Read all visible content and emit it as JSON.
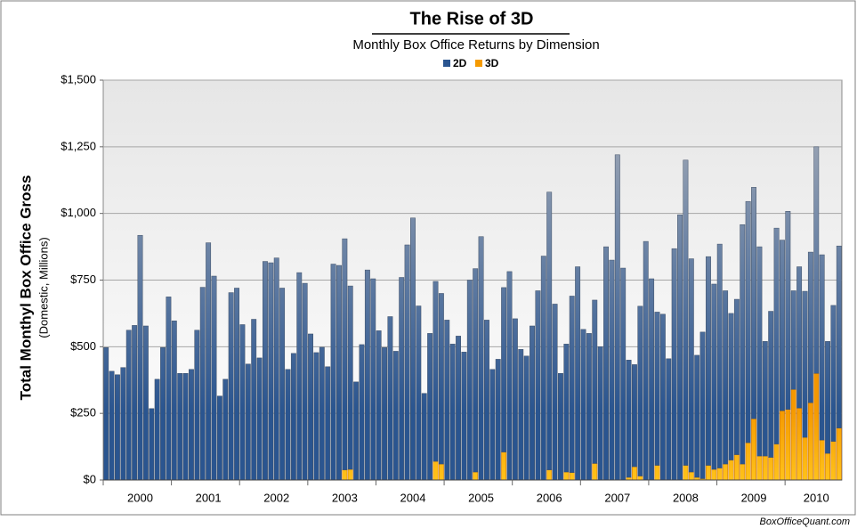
{
  "chart_data": {
    "type": "stacked_bar",
    "title": "The Rise of 3D",
    "subtitle": "Monthly Box Office Returns by Dimension",
    "y_label": "Total Monthyl Box Office Gross",
    "y_sublabel": "(Domestic, Millions)",
    "source": "BoxOfficeQuant.com",
    "categories": [
      null,
      null,
      null,
      null,
      null,
      null,
      "2000",
      null,
      null,
      null,
      null,
      null,
      null,
      null,
      null,
      null,
      null,
      null,
      "2001",
      null,
      null,
      null,
      null,
      null,
      null,
      null,
      null,
      null,
      null,
      null,
      "2002",
      null,
      null,
      null,
      null,
      null,
      null,
      null,
      null,
      null,
      null,
      null,
      "2003",
      null,
      null,
      null,
      null,
      null,
      null,
      null,
      null,
      null,
      null,
      null,
      "2004",
      null,
      null,
      null,
      null,
      null,
      null,
      null,
      null,
      null,
      null,
      null,
      "2005",
      null,
      null,
      null,
      null,
      null,
      null,
      null,
      null,
      null,
      null,
      null,
      "2006",
      null,
      null,
      null,
      null,
      null,
      null,
      null,
      null,
      null,
      null,
      null,
      "2007",
      null,
      null,
      null,
      null,
      null,
      null,
      null,
      null,
      null,
      null,
      null,
      "2008",
      null,
      null,
      null,
      null,
      null,
      null,
      null,
      null,
      null,
      null,
      null,
      "2009",
      null,
      null,
      null,
      null,
      null,
      null,
      null,
      null,
      null,
      null,
      "2010",
      null,
      null,
      null,
      null
    ],
    "series": [
      {
        "name": "3D",
        "color": "#f59a00",
        "values": [
          0,
          0,
          0,
          0,
          0,
          0,
          0,
          0,
          0,
          0,
          0,
          0,
          0,
          0,
          0,
          0,
          0,
          0,
          0,
          0,
          0,
          0,
          0,
          0,
          0,
          0,
          0,
          0,
          0,
          0,
          0,
          0,
          0,
          0,
          0,
          0,
          0,
          0,
          0,
          0,
          0,
          0,
          38,
          40,
          0,
          0,
          0,
          0,
          0,
          0,
          0,
          0,
          0,
          0,
          0,
          0,
          0,
          0,
          70,
          60,
          0,
          0,
          0,
          0,
          0,
          30,
          0,
          0,
          0,
          0,
          105,
          0,
          0,
          0,
          0,
          0,
          0,
          0,
          38,
          0,
          0,
          30,
          28,
          0,
          0,
          0,
          62,
          0,
          0,
          0,
          0,
          0,
          10,
          50,
          15,
          0,
          0,
          55,
          0,
          0,
          0,
          0,
          55,
          30,
          10,
          5,
          55,
          40,
          45,
          60,
          75,
          95,
          60,
          140,
          230,
          90,
          90,
          85,
          135,
          260,
          265,
          340,
          270,
          160,
          290,
          400,
          150,
          100,
          145,
          195
        ]
      },
      {
        "name": "2D",
        "color": "#2a5590",
        "values": [
          497,
          408,
          395,
          422,
          562,
          580,
          918,
          578,
          268,
          378,
          497,
          687,
          597,
          400,
          400,
          415,
          562,
          723,
          890,
          765,
          315,
          378,
          703,
          720,
          583,
          435,
          603,
          458,
          820,
          815,
          833,
          720,
          415,
          475,
          778,
          738,
          548,
          478,
          498,
          425,
          810,
          805,
          867,
          688,
          368,
          508,
          788,
          755,
          560,
          497,
          613,
          483,
          760,
          882,
          983,
          653,
          325,
          550,
          675,
          640,
          600,
          510,
          540,
          480,
          750,
          763,
          913,
          600,
          415,
          453,
          617,
          782,
          605,
          490,
          465,
          578,
          710,
          840,
          1042,
          660,
          400,
          480,
          662,
          800,
          565,
          550,
          613,
          500,
          875,
          825,
          1220,
          795,
          440,
          383,
          637,
          895,
          755,
          575,
          622,
          455,
          868,
          995,
          1145,
          800,
          458,
          550,
          783,
          695,
          840,
          650,
          550,
          583,
          898,
          905,
          868,
          785,
          430,
          548,
          810,
          640,
          743,
          370,
          530,
          548,
          565,
          850,
          695,
          420,
          510,
          683
        ]
      }
    ],
    "ylim": [
      0,
      1500
    ],
    "yticks": [
      {
        "value": 0,
        "label": "$0"
      },
      {
        "value": 250,
        "label": "$250"
      },
      {
        "value": 500,
        "label": "$500"
      },
      {
        "value": 750,
        "label": "$750"
      },
      {
        "value": 1000,
        "label": "$1,000"
      },
      {
        "value": 1250,
        "label": "$1,250"
      },
      {
        "value": 1500,
        "label": "$1,500"
      }
    ],
    "grid": true,
    "legend": "top"
  }
}
